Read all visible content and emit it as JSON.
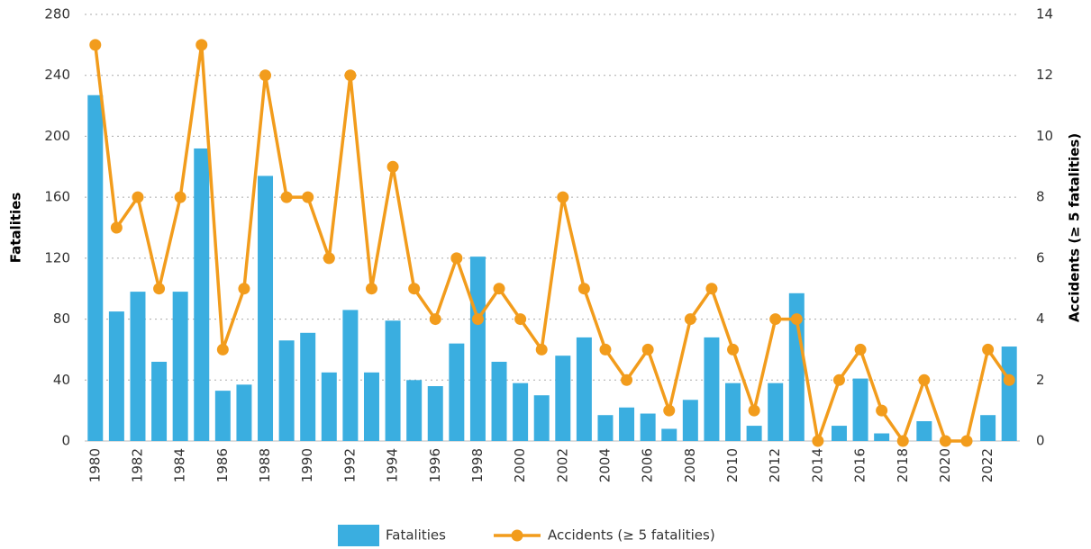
{
  "chart_data": {
    "type": "bar",
    "categories": [
      "1980",
      null,
      "1982",
      null,
      "1984",
      null,
      "1986",
      null,
      "1988",
      null,
      "1990",
      null,
      "1992",
      null,
      "1994",
      null,
      "1996",
      null,
      "1998",
      null,
      "2000",
      null,
      "2002",
      null,
      "2004",
      null,
      "2006",
      null,
      "2008",
      null,
      "2010",
      null,
      "2012",
      null,
      "2014",
      null,
      "2016",
      null,
      "2018",
      null,
      "2020",
      null,
      "2022",
      null
    ],
    "series": [
      {
        "name": "Fatalities",
        "color": "#3aaee0",
        "type": "bar",
        "values": [
          227,
          85,
          98,
          52,
          98,
          192,
          33,
          37,
          174,
          66,
          71,
          45,
          86,
          45,
          79,
          40,
          36,
          64,
          121,
          52,
          38,
          30,
          56,
          68,
          17,
          22,
          18,
          8,
          27,
          68,
          38,
          10,
          38,
          97,
          0,
          10,
          41,
          5,
          0,
          13,
          0,
          0,
          17,
          62
        ]
      },
      {
        "name": "Accidents (≥ 5 fatalities)",
        "color": "#f29c1c",
        "type": "line",
        "axis": "y2",
        "values": [
          13,
          7,
          8,
          5,
          8,
          13,
          3,
          5,
          12,
          8,
          8,
          6,
          12,
          5,
          9,
          5,
          4,
          6,
          4,
          5,
          4,
          3,
          8,
          5,
          3,
          2,
          3,
          1,
          4,
          5,
          3,
          1,
          4,
          4,
          0,
          2,
          3,
          1,
          0,
          2,
          0,
          0,
          3,
          2
        ]
      }
    ],
    "y_label": "Fatalities",
    "y2_label": "Accidents (≥ 5 fatalities)",
    "ylim": [
      0,
      280
    ],
    "yticks": [
      0,
      40,
      80,
      120,
      160,
      200,
      240,
      280
    ],
    "y2lim": [
      0,
      14
    ],
    "y2ticks": [
      0,
      2,
      4,
      6,
      8,
      10,
      12,
      14
    ],
    "grid": true,
    "legend": "bottom"
  }
}
